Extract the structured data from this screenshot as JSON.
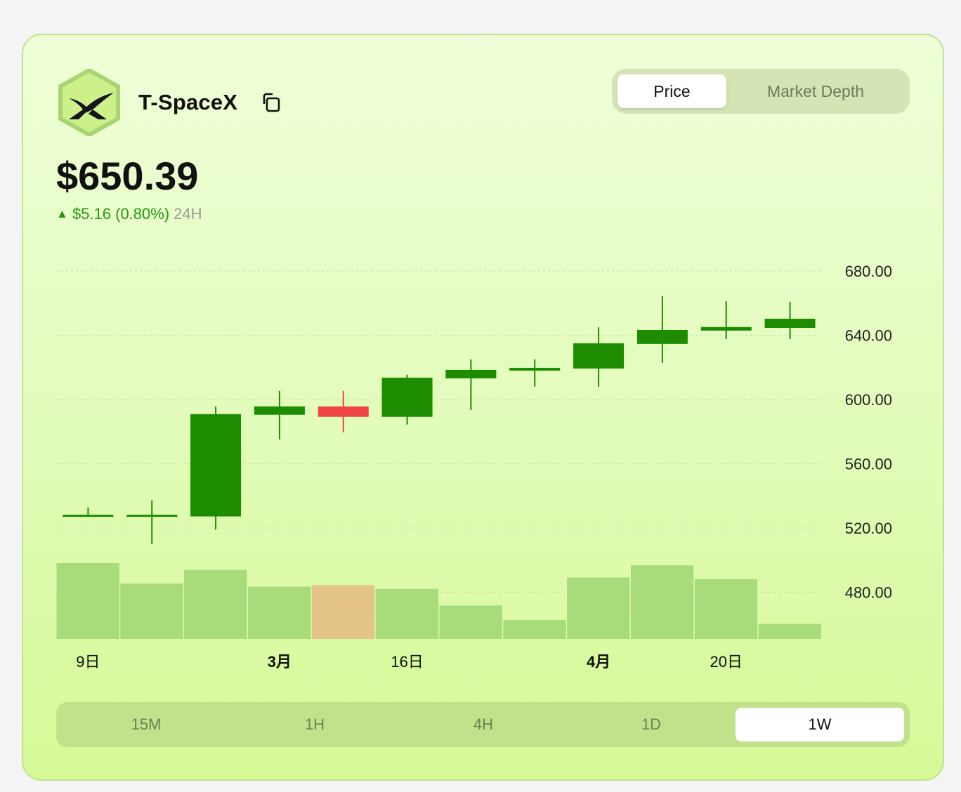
{
  "asset": {
    "name": "T-SpaceX",
    "logo_icon": "spacex-x-hexagon-logo",
    "copy_icon": "copy-icon"
  },
  "price": {
    "value": "$650.39",
    "change": "$5.16 (0.80%)",
    "period": "24H",
    "direction": "up",
    "up_arrow": "▲"
  },
  "view_toggle": {
    "options": [
      "Price",
      "Market Depth"
    ],
    "selected": "Price"
  },
  "timeframes": {
    "options": [
      "15M",
      "1H",
      "4H",
      "1D",
      "1W"
    ],
    "selected": "1W"
  },
  "colors": {
    "up": "#1e8c00",
    "down": "#ef4444",
    "volume_up": "#a8db7a",
    "volume_down": "#e4c587"
  },
  "chart_data": {
    "type": "candlestick",
    "yaxis_labels": [
      "680.00",
      "640.00",
      "600.00",
      "560.00",
      "520.00",
      "480.00"
    ],
    "yticks": [
      680,
      640,
      600,
      560,
      520,
      480
    ],
    "ylim": [
      450,
      680
    ],
    "grid": true,
    "x_labels": [
      {
        "index": 0,
        "text": "9日",
        "bold": false
      },
      {
        "index": 3,
        "text": "3月",
        "bold": true
      },
      {
        "index": 5,
        "text": "16日",
        "bold": false
      },
      {
        "index": 8,
        "text": "4月",
        "bold": true
      },
      {
        "index": 10,
        "text": "20日",
        "bold": false
      }
    ],
    "candles": [
      {
        "open": 527.6,
        "high": 532.8,
        "low": 527.6,
        "close": 527.6
      },
      {
        "open": 527.6,
        "high": 537.2,
        "low": 510.0,
        "close": 527.6
      },
      {
        "open": 527.2,
        "high": 595.7,
        "low": 518.9,
        "close": 590.9
      },
      {
        "open": 590.5,
        "high": 605.3,
        "low": 575.2,
        "close": 595.7
      },
      {
        "open": 595.7,
        "high": 605.3,
        "low": 579.6,
        "close": 589.2
      },
      {
        "open": 589.2,
        "high": 615.4,
        "low": 584.4,
        "close": 613.6
      },
      {
        "open": 613.2,
        "high": 625.0,
        "low": 593.5,
        "close": 618.4
      },
      {
        "open": 618.0,
        "high": 625.0,
        "low": 608.0,
        "close": 619.7
      },
      {
        "open": 619.3,
        "high": 645.0,
        "low": 608.0,
        "close": 635.0
      },
      {
        "open": 634.6,
        "high": 664.3,
        "low": 622.8,
        "close": 643.3
      },
      {
        "open": 642.9,
        "high": 661.2,
        "low": 637.6,
        "close": 645.1
      },
      {
        "open": 644.6,
        "high": 660.8,
        "low": 637.6,
        "close": 650.3
      }
    ],
    "volume_relative": [
      100,
      73,
      91,
      69,
      71,
      66,
      44,
      25,
      81,
      97,
      79,
      20
    ]
  }
}
